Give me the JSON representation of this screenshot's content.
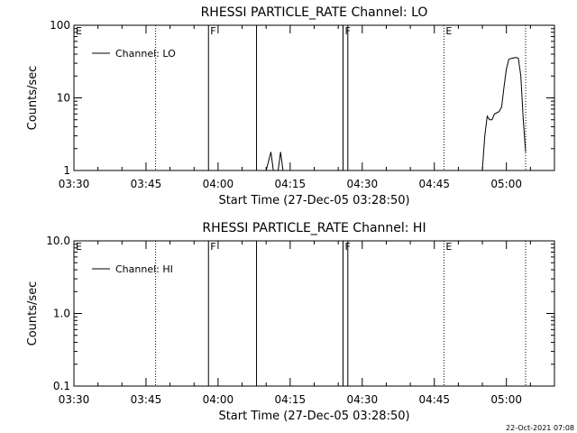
{
  "footer": {
    "timestamp": "22-Oct-2021 07:08"
  },
  "chart_data": [
    {
      "type": "line",
      "title": "RHESSI PARTICLE_RATE Channel: LO",
      "xlabel": "Start Time (27-Dec-05 03:28:50)",
      "ylabel": "Counts/sec",
      "yscale": "log",
      "xlim": [
        "03:30",
        "05:10"
      ],
      "ylim": [
        1,
        100
      ],
      "x_ticks": [
        "03:30",
        "03:45",
        "04:00",
        "04:15",
        "04:30",
        "04:45",
        "05:00"
      ],
      "y_ticks": [
        "1",
        "10",
        "100"
      ],
      "legend": {
        "label": "Channel: LO",
        "position": "top-left"
      },
      "grid": false,
      "markers": [
        {
          "time": "03:30",
          "label": "E",
          "style": "dotted"
        },
        {
          "time": "03:47",
          "label": "",
          "style": "dotted"
        },
        {
          "time": "03:58",
          "label": "F",
          "style": "solid"
        },
        {
          "time": "04:08",
          "label": "",
          "style": "solid"
        },
        {
          "time": "04:26",
          "label": "F",
          "style": "solid"
        },
        {
          "time": "04:27",
          "label": "",
          "style": "solid"
        },
        {
          "time": "04:47",
          "label": "E",
          "style": "dotted"
        },
        {
          "time": "05:04",
          "label": "",
          "style": "dotted"
        }
      ],
      "series": [
        {
          "name": "Channel: LO",
          "segments": [
            [
              [
                "04:10",
                "1"
              ],
              [
                "04:11",
                "1.8"
              ],
              [
                "04:11.5",
                "1"
              ]
            ],
            [
              [
                "04:12.5",
                "1"
              ],
              [
                "04:13",
                "1.8"
              ],
              [
                "04:13.5",
                "1"
              ]
            ],
            [
              [
                "04:55",
                "1"
              ],
              [
                "04:55.5",
                "3"
              ],
              [
                "04:56",
                "5.6"
              ],
              [
                "04:56.5",
                "5"
              ],
              [
                "04:57",
                "5"
              ],
              [
                "04:57.5",
                "6"
              ],
              [
                "04:58.5",
                "6.5"
              ],
              [
                "04:59",
                "7.5"
              ],
              [
                "04:59.5",
                "14"
              ],
              [
                "05:00",
                "25"
              ],
              [
                "05:00.5",
                "34"
              ],
              [
                "05:01",
                "35"
              ],
              [
                "05:02",
                "36"
              ],
              [
                "05:02.5",
                "35"
              ],
              [
                "05:03",
                "20"
              ],
              [
                "05:03.5",
                "5"
              ],
              [
                "05:04",
                "1.8"
              ]
            ]
          ]
        }
      ]
    },
    {
      "type": "line",
      "title": "RHESSI PARTICLE_RATE Channel: HI",
      "xlabel": "Start Time (27-Dec-05 03:28:50)",
      "ylabel": "Counts/sec",
      "yscale": "log",
      "xlim": [
        "03:30",
        "05:10"
      ],
      "ylim": [
        0.1,
        10
      ],
      "x_ticks": [
        "03:30",
        "03:45",
        "04:00",
        "04:15",
        "04:30",
        "04:45",
        "05:00"
      ],
      "y_ticks": [
        "0.1",
        "1.0",
        "10.0"
      ],
      "legend": {
        "label": "Channel: HI",
        "position": "top-left"
      },
      "grid": false,
      "markers": [
        {
          "time": "03:30",
          "label": "E",
          "style": "dotted"
        },
        {
          "time": "03:47",
          "label": "",
          "style": "dotted"
        },
        {
          "time": "03:58",
          "label": "F",
          "style": "solid"
        },
        {
          "time": "04:08",
          "label": "",
          "style": "solid"
        },
        {
          "time": "04:26",
          "label": "F",
          "style": "solid"
        },
        {
          "time": "04:27",
          "label": "",
          "style": "solid"
        },
        {
          "time": "04:47",
          "label": "E",
          "style": "dotted"
        },
        {
          "time": "05:04",
          "label": "",
          "style": "dotted"
        }
      ],
      "series": [
        {
          "name": "Channel: HI",
          "segments": []
        }
      ]
    }
  ]
}
